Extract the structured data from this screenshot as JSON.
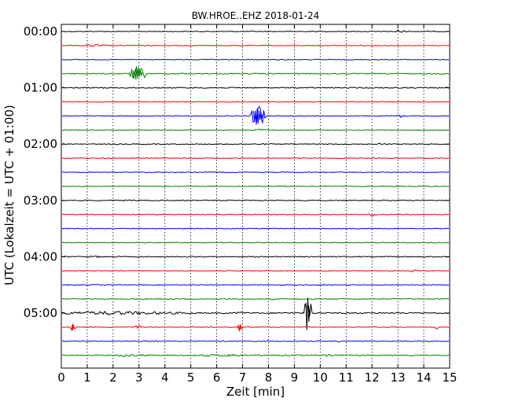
{
  "chart_data": {
    "type": "line",
    "title": "BW.HROE..EHZ 2018-01-24",
    "xlabel": "Zeit  [min]",
    "ylabel": "UTC (Lokalzeit = UTC + 01:00)",
    "xlim": [
      0,
      15
    ],
    "x_ticks": [
      "0",
      "1",
      "2",
      "3",
      "4",
      "5",
      "6",
      "7",
      "8",
      "9",
      "10",
      "11",
      "12",
      "13",
      "14",
      "15"
    ],
    "y_tick_labels": [
      "00:00",
      "01:00",
      "02:00",
      "03:00",
      "04:00",
      "05:00"
    ],
    "y_tick_rows": [
      0,
      4,
      8,
      12,
      16,
      20
    ],
    "minutes_per_row": 15,
    "grid": "vertical dotted",
    "colors": [
      "#000000",
      "#ff0000",
      "#0000ff",
      "#008000"
    ],
    "rows": [
      {
        "start": "00:00",
        "noise": 0.5,
        "events": [
          {
            "t": 1.1,
            "a": 1.2,
            "d": 0.15
          },
          {
            "t": 13.05,
            "a": 3,
            "d": 0.2
          }
        ]
      },
      {
        "start": "00:15",
        "noise": 0.5,
        "events": [
          {
            "t": 1.3,
            "a": 2,
            "d": 0.5
          },
          {
            "t": 1.5,
            "a": 1.2,
            "d": 0.4
          }
        ]
      },
      {
        "start": "00:30",
        "noise": 0.5,
        "events": []
      },
      {
        "start": "00:45",
        "noise": 0.6,
        "events": [
          {
            "t": 2.95,
            "a": 10,
            "d": 0.35
          },
          {
            "t": 4.7,
            "a": 1.2,
            "d": 0.2
          }
        ]
      },
      {
        "start": "01:00",
        "noise": 0.7,
        "events": []
      },
      {
        "start": "01:15",
        "noise": 0.5,
        "events": []
      },
      {
        "start": "01:30",
        "noise": 0.5,
        "events": [
          {
            "t": 7.6,
            "a": 13,
            "d": 0.35
          },
          {
            "t": 13.1,
            "a": 2,
            "d": 0.15
          }
        ]
      },
      {
        "start": "01:45",
        "noise": 0.5,
        "events": [
          {
            "t": 7.7,
            "a": 1.5,
            "d": 0.3
          }
        ]
      },
      {
        "start": "02:00",
        "noise": 0.6,
        "events": [
          {
            "t": 12.3,
            "a": 1.5,
            "d": 0.15
          }
        ]
      },
      {
        "start": "02:15",
        "noise": 0.5,
        "events": []
      },
      {
        "start": "02:30",
        "noise": 0.5,
        "events": []
      },
      {
        "start": "02:45",
        "noise": 0.5,
        "events": [
          {
            "t": 8.7,
            "a": 1.5,
            "d": 0.15
          }
        ]
      },
      {
        "start": "03:00",
        "noise": 0.6,
        "events": [
          {
            "t": 2.4,
            "a": 1.2,
            "d": 0.2
          }
        ]
      },
      {
        "start": "03:15",
        "noise": 0.5,
        "events": [
          {
            "t": 12.0,
            "a": 3,
            "d": 0.15
          }
        ]
      },
      {
        "start": "03:30",
        "noise": 0.5,
        "events": []
      },
      {
        "start": "03:45",
        "noise": 0.5,
        "events": [
          {
            "t": 4.6,
            "a": 1.2,
            "d": 0.2
          }
        ]
      },
      {
        "start": "04:00",
        "noise": 0.6,
        "events": [
          {
            "t": 1.3,
            "a": 1.5,
            "d": 0.3
          }
        ]
      },
      {
        "start": "04:15",
        "noise": 0.5,
        "events": [
          {
            "t": 13.6,
            "a": 2,
            "d": 0.15
          }
        ]
      },
      {
        "start": "04:30",
        "noise": 0.5,
        "events": []
      },
      {
        "start": "04:45",
        "noise": 0.6,
        "events": [
          {
            "t": 8.2,
            "a": 1.2,
            "d": 0.2
          }
        ]
      },
      {
        "start": "05:00",
        "noise": 0.8,
        "events": [
          {
            "t": 2.0,
            "a": 2.5,
            "d": 3.0
          },
          {
            "t": 6.9,
            "a": 2,
            "d": 0.15
          },
          {
            "t": 9.52,
            "a": 26,
            "d": 0.15
          }
        ]
      },
      {
        "start": "05:15",
        "noise": 0.5,
        "events": [
          {
            "t": 0.45,
            "a": 6,
            "d": 0.1
          },
          {
            "t": 1.95,
            "a": 2,
            "d": 0.1
          },
          {
            "t": 2.95,
            "a": 4,
            "d": 0.1
          },
          {
            "t": 6.9,
            "a": 6,
            "d": 0.1
          },
          {
            "t": 14.55,
            "a": 4,
            "d": 0.1
          }
        ]
      },
      {
        "start": "05:30",
        "noise": 0.5,
        "events": [
          {
            "t": 3.3,
            "a": 1.2,
            "d": 0.2
          },
          {
            "t": 6.4,
            "a": 1.2,
            "d": 0.2
          },
          {
            "t": 10.7,
            "a": 1.2,
            "d": 0.2
          }
        ]
      },
      {
        "start": "05:45",
        "noise": 0.7,
        "events": [
          {
            "t": 2.6,
            "a": 2,
            "d": 0.5
          },
          {
            "t": 3.2,
            "a": 2,
            "d": 0.2
          },
          {
            "t": 5.8,
            "a": 1.5,
            "d": 1.0
          },
          {
            "t": 6.6,
            "a": 2,
            "d": 0.5
          },
          {
            "t": 10.2,
            "a": 1.5,
            "d": 0.3
          }
        ]
      }
    ]
  }
}
